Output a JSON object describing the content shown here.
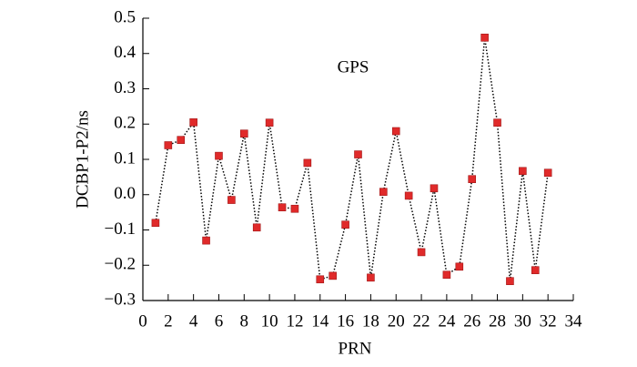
{
  "chart_data": {
    "type": "line",
    "annotation": "GPS",
    "xlabel": "PRN",
    "ylabel": "DCBP1-P2/ns",
    "x": [
      1,
      2,
      3,
      4,
      5,
      6,
      7,
      8,
      9,
      10,
      11,
      12,
      13,
      14,
      15,
      16,
      17,
      18,
      19,
      20,
      21,
      22,
      23,
      24,
      25,
      26,
      27,
      28,
      29,
      30,
      31,
      32
    ],
    "series": [
      {
        "name": "GPS",
        "color": "#e02a2a",
        "values": [
          -0.08,
          0.14,
          0.155,
          0.205,
          -0.13,
          0.11,
          -0.015,
          0.173,
          -0.093,
          0.204,
          -0.036,
          -0.04,
          0.09,
          -0.24,
          -0.23,
          -0.085,
          0.114,
          -0.235,
          0.008,
          0.18,
          -0.003,
          -0.163,
          0.018,
          -0.227,
          -0.204,
          0.044,
          0.445,
          0.204,
          -0.245,
          0.067,
          -0.214,
          0.062
        ]
      }
    ],
    "xlim": [
      0,
      34
    ],
    "xticks": [
      0,
      2,
      4,
      6,
      8,
      10,
      12,
      14,
      16,
      18,
      20,
      22,
      24,
      26,
      28,
      30,
      32,
      34
    ],
    "ylim": [
      -0.3,
      0.5
    ],
    "yticks": [
      {
        "value": -0.3,
        "label": "−0.3"
      },
      {
        "value": -0.2,
        "label": "−0.2"
      },
      {
        "value": -0.1,
        "label": "−0.1"
      },
      {
        "value": 0,
        "label": "0.0"
      },
      0.1,
      0.2,
      0.3,
      0.4,
      0.5
    ]
  }
}
